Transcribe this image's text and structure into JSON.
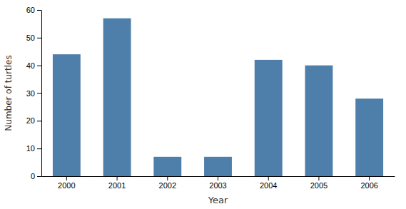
{
  "chart_data": {
    "type": "bar",
    "categories": [
      "2000",
      "2001",
      "2002",
      "2003",
      "2004",
      "2005",
      "2006"
    ],
    "values": [
      44,
      57,
      7,
      7,
      42,
      40,
      28
    ],
    "color": "#4e7faa",
    "xlabel": "Year",
    "ylabel": "Number of turtles",
    "ylim": [
      0,
      60
    ],
    "yticks": [
      0,
      10,
      20,
      30,
      40,
      50,
      60
    ],
    "grid": false
  }
}
